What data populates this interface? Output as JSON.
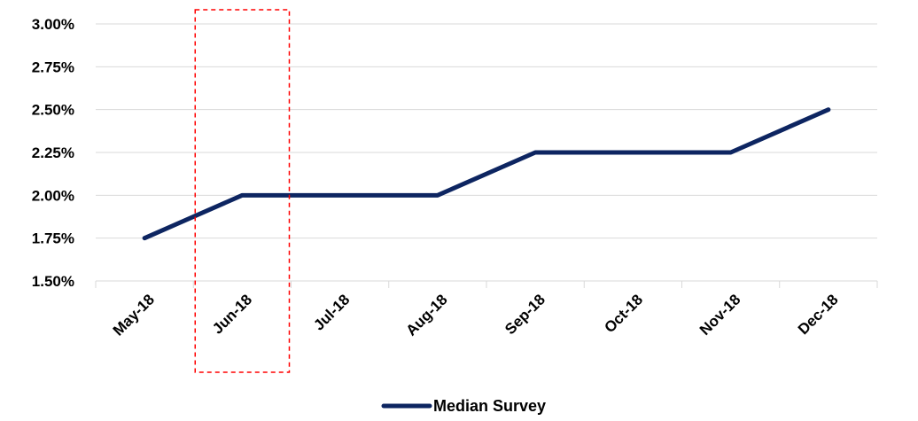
{
  "chart_data": {
    "type": "line",
    "categories": [
      "May-18",
      "Jun-18",
      "Jul-18",
      "Aug-18",
      "Sep-18",
      "Oct-18",
      "Nov-18",
      "Dec-18"
    ],
    "series": [
      {
        "name": "Median Survey",
        "values": [
          1.75,
          2.0,
          2.0,
          2.0,
          2.25,
          2.25,
          2.25,
          2.5
        ],
        "color": "#0d2561"
      }
    ],
    "ylim": [
      1.5,
      3.0
    ],
    "yticks": [
      1.5,
      1.75,
      2.0,
      2.25,
      2.5,
      2.75,
      3.0
    ],
    "ytick_labels": [
      "1.50%",
      "1.75%",
      "2.00%",
      "2.25%",
      "2.50%",
      "2.75%",
      "3.00%"
    ],
    "grid": true,
    "legend_position": "bottom",
    "highlight": {
      "category": "Jun-18",
      "style": "dashed-box",
      "color": "#ff0000"
    }
  }
}
